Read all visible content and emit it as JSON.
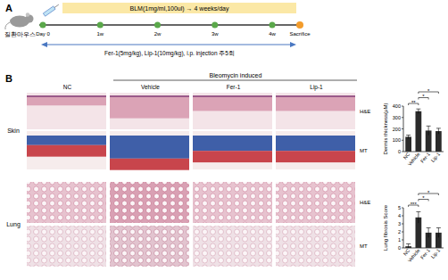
{
  "panel_a": {
    "label": "A",
    "mouse_label": "질환마우스",
    "treatment_bar": "BLM(1mg/ml,100ul) → 4 weeks/day",
    "timepoints": [
      "Day 0",
      "1w",
      "2w",
      "3w",
      "4w"
    ],
    "endpoint": "Sacrifice",
    "drug_note": "Fer-1(5mg/kg), Lip-1(10mg/kg), i.p. injection 주5회"
  },
  "panel_b": {
    "label": "B",
    "group_header": "Bleomycin induced",
    "columns": [
      "NC",
      "Vehicle",
      "Fer-1",
      "Lip-1"
    ],
    "rows": [
      {
        "tissue": "Skin",
        "stains": [
          "H&E",
          "MT"
        ]
      },
      {
        "tissue": "Lung",
        "stains": [
          "H&E",
          "MT"
        ]
      }
    ]
  },
  "chart_data": [
    {
      "type": "bar",
      "y_label": "Dermis thickness(μM)",
      "categories": [
        "NC",
        "Vehicle",
        "Fer-1",
        "Lip-1"
      ],
      "values": [
        130,
        355,
        185,
        180
      ],
      "errors": [
        15,
        20,
        40,
        25
      ],
      "color": "#2b2b2b",
      "ylim": [
        0,
        400
      ],
      "yticks": [
        0,
        100,
        200,
        300,
        400
      ],
      "annotations": [
        {
          "from": 0,
          "to": 1,
          "label": "**"
        },
        {
          "from": 1,
          "to": 2,
          "label": "*"
        },
        {
          "from": 1,
          "to": 3,
          "label": "*"
        }
      ]
    },
    {
      "type": "bar",
      "y_label": "Lung fibrosis Score",
      "categories": [
        "NC",
        "Vehicle",
        "Fer-1",
        "Lip-1"
      ],
      "values": [
        0.2,
        3.8,
        1.9,
        1.9
      ],
      "errors": [
        0.3,
        0.7,
        0.6,
        0.6
      ],
      "color": "#2b2b2b",
      "ylim": [
        0,
        5
      ],
      "yticks": [
        0,
        1,
        2,
        3,
        4,
        5
      ],
      "annotations": [
        {
          "from": 0,
          "to": 1,
          "label": "***"
        },
        {
          "from": 1,
          "to": 2,
          "label": "*"
        },
        {
          "from": 1,
          "to": 3,
          "label": "*"
        }
      ]
    }
  ]
}
